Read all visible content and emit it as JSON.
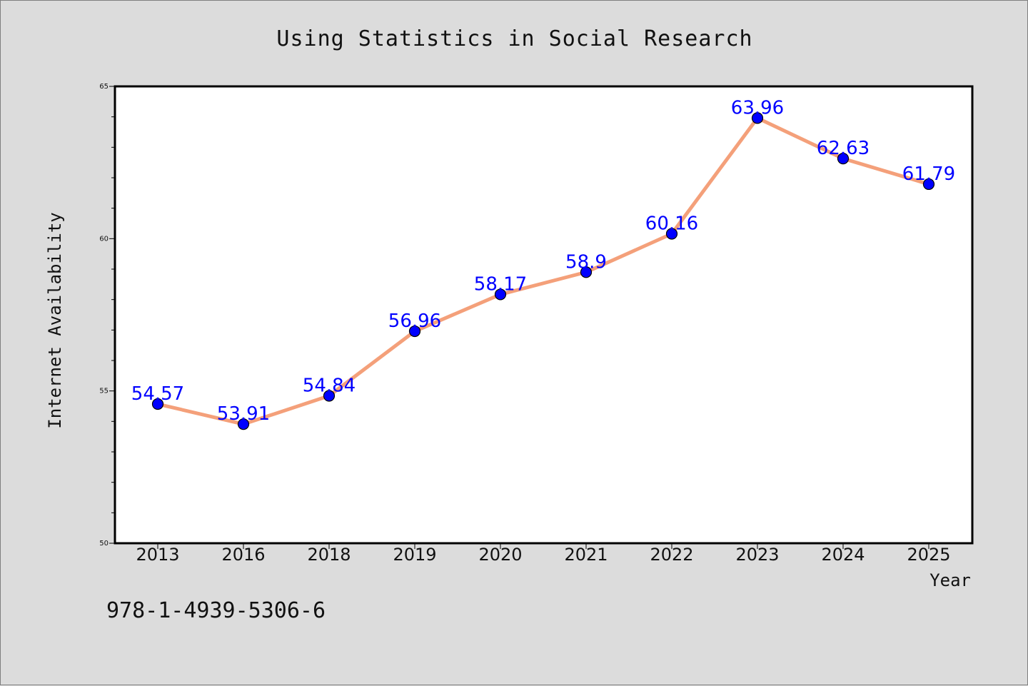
{
  "chart_data": {
    "type": "line",
    "title": "Using Statistics in Social Research",
    "xlabel": "Year",
    "ylabel": "Internet Availability",
    "categories": [
      "2013",
      "2016",
      "2018",
      "2019",
      "2020",
      "2021",
      "2022",
      "2023",
      "2024",
      "2025"
    ],
    "series": [
      {
        "values": [
          54.57,
          53.91,
          54.84,
          56.96,
          58.17,
          58.9,
          60.16,
          63.96,
          62.63,
          61.79
        ],
        "labels": [
          "54.57",
          "53.91",
          "54.84",
          "56.96",
          "58.17",
          "58.9",
          "60.16",
          "63.96",
          "62.63",
          "61.79"
        ]
      }
    ],
    "ylim": [
      50,
      65
    ],
    "yticks": [
      "50",
      "55",
      "60",
      "65"
    ],
    "grid": false,
    "colors": {
      "line": "#f4a07a",
      "marker": "#0000ff",
      "label": "#0000ff",
      "background": "#dcdcdc",
      "plot_background": "#ffffff"
    }
  },
  "annotation": "978-1-4939-5306-6"
}
